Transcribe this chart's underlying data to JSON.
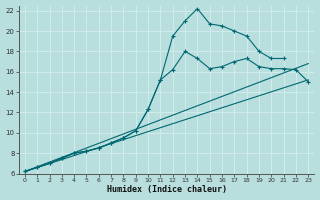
{
  "xlabel": "Humidex (Indice chaleur)",
  "ylabel": "",
  "background_color": "#b8dede",
  "grid_color": "#d0ecec",
  "line_color": "#006870",
  "xlim": [
    -0.5,
    23.5
  ],
  "ylim": [
    6,
    22.5
  ],
  "xticks": [
    0,
    1,
    2,
    3,
    4,
    5,
    6,
    7,
    8,
    9,
    10,
    11,
    12,
    13,
    14,
    15,
    16,
    17,
    18,
    19,
    20,
    21,
    22,
    23
  ],
  "yticks": [
    6,
    8,
    10,
    12,
    14,
    16,
    18,
    20,
    22
  ],
  "series_peaked": {
    "x": [
      0,
      1,
      2,
      3,
      4,
      5,
      6,
      7,
      8,
      9,
      10,
      11,
      12,
      13,
      14,
      15,
      16,
      17,
      18,
      19,
      20,
      21
    ],
    "y": [
      6.2,
      6.6,
      7.0,
      7.5,
      8.0,
      8.2,
      8.5,
      9.0,
      9.5,
      10.2,
      12.3,
      15.2,
      19.5,
      21.0,
      22.2,
      20.7,
      20.5,
      20.0,
      19.5,
      18.0,
      17.3,
      17.3
    ]
  },
  "series_lower": {
    "x": [
      0,
      1,
      2,
      3,
      4,
      5,
      6,
      7,
      8,
      9,
      10,
      11,
      12,
      13,
      14,
      15,
      16,
      17,
      18,
      19,
      20,
      21,
      22,
      23
    ],
    "y": [
      6.2,
      6.6,
      7.0,
      7.5,
      8.0,
      8.2,
      8.5,
      9.0,
      9.5,
      10.2,
      12.3,
      15.2,
      16.2,
      18.0,
      17.3,
      16.3,
      16.5,
      17.0,
      17.3,
      16.5,
      16.3,
      16.3,
      16.2,
      15.0
    ]
  },
  "line1": {
    "x": [
      0,
      23
    ],
    "y": [
      6.2,
      16.8
    ]
  },
  "line2": {
    "x": [
      0,
      23
    ],
    "y": [
      6.2,
      15.2
    ]
  }
}
